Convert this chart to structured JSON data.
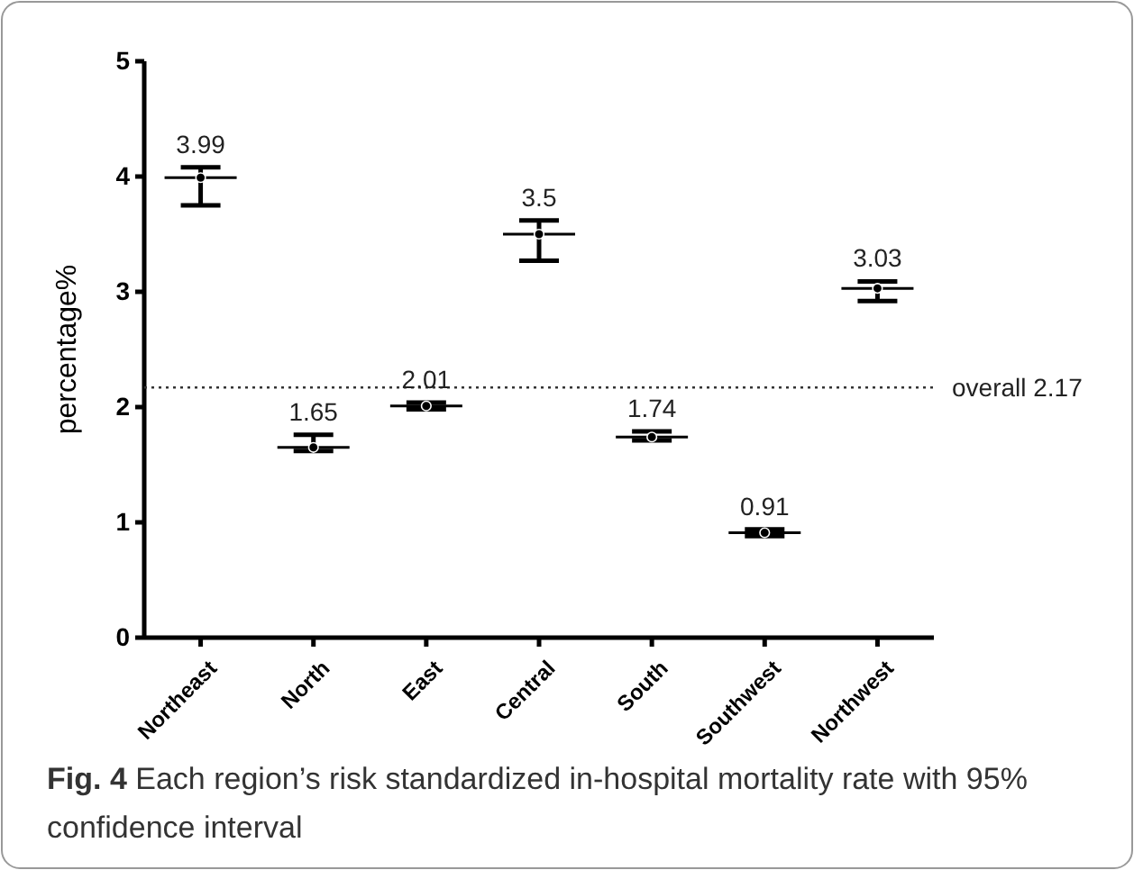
{
  "chart_data": {
    "type": "scatter",
    "categories": [
      "Northeast",
      "North",
      "East",
      "Central",
      "South",
      "Southwest",
      "Northwest"
    ],
    "values": [
      3.99,
      1.65,
      2.01,
      3.5,
      1.74,
      0.91,
      3.03
    ],
    "errors": [
      [
        3.75,
        4.08
      ],
      [
        1.62,
        1.76
      ],
      [
        1.98,
        2.04
      ],
      [
        3.27,
        3.62
      ],
      [
        1.71,
        1.79
      ],
      [
        0.88,
        0.94
      ],
      [
        2.92,
        3.09
      ]
    ],
    "color": "#000000",
    "marker": "circle",
    "data_labels": true,
    "ylabel": "percentage%",
    "ylim": [
      0,
      5
    ],
    "yticks": [
      0,
      1,
      2,
      3,
      4,
      5
    ],
    "ref_lines": [
      {
        "axis": "y",
        "value": 2.17,
        "label": "overall 2.17",
        "line_style": "dotted"
      }
    ],
    "annotations": [
      "Fig. 4  Each region’s risk standardized in-hospital mortality rate with 95% confidence interval"
    ]
  }
}
